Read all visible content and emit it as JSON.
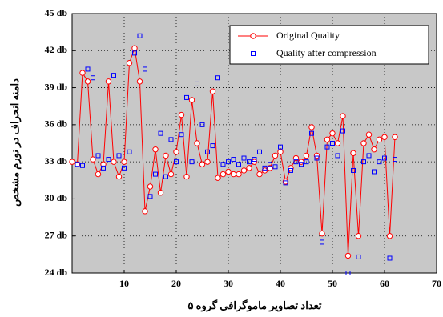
{
  "chart_data": {
    "type": "line",
    "xlabel": "تعداد تصاویر ماموگرافی گروه ۵",
    "ylabel": "دامنه انحراف در نورم مشخص",
    "xlim": [
      0,
      70
    ],
    "xticks": [
      10,
      20,
      30,
      40,
      50,
      60,
      70
    ],
    "ylim": [
      24,
      45
    ],
    "yticks": [
      {
        "value": 24,
        "label": "24 db"
      },
      {
        "value": 27,
        "label": "27 db"
      },
      {
        "value": 30,
        "label": "30 db"
      },
      {
        "value": 33,
        "label": "33 db"
      },
      {
        "value": 36,
        "label": "36 db"
      },
      {
        "value": 39,
        "label": "39 db"
      },
      {
        "value": 42,
        "label": "42 db"
      },
      {
        "value": 45,
        "label": "45 db"
      }
    ],
    "grid": true,
    "legend": "upper right",
    "series": [
      {
        "name": "Original Quality",
        "color": "#ff0000",
        "marker": "circle",
        "x": [
          0,
          1,
          2,
          3,
          4,
          5,
          6,
          7,
          8,
          9,
          10,
          11,
          12,
          13,
          14,
          15,
          16,
          17,
          18,
          19,
          20,
          21,
          22,
          23,
          24,
          25,
          26,
          27,
          28,
          29,
          30,
          31,
          32,
          33,
          34,
          35,
          36,
          37,
          38,
          39,
          40,
          41,
          42,
          43,
          44,
          45,
          46,
          47,
          48,
          49,
          50,
          51,
          52,
          53,
          54,
          55,
          56,
          57,
          58,
          59,
          60,
          61,
          62
        ],
        "values": [
          33,
          32.8,
          40.2,
          39.5,
          33.2,
          32,
          32.8,
          39.5,
          33,
          31.8,
          33,
          41,
          42.2,
          39.5,
          29,
          31,
          34,
          30.5,
          33.5,
          32,
          33.8,
          36.8,
          31.8,
          38,
          34.5,
          32.8,
          33,
          38.7,
          31.7,
          32,
          32.2,
          32,
          32,
          32.3,
          32.5,
          33,
          32,
          32.3,
          32.5,
          33.5,
          33.8,
          31.4,
          32.5,
          33.3,
          33,
          33.5,
          35.8,
          33.5,
          27.2,
          34.8,
          35.3,
          34.5,
          36.7,
          25.4,
          33.7,
          27,
          34.5,
          35.2,
          34,
          34.8,
          35,
          27,
          35
        ]
      },
      {
        "name": "Quality after compression",
        "color": "#0000ff",
        "marker": "square",
        "x": [
          1,
          2,
          3,
          4,
          5,
          6,
          7,
          8,
          9,
          10,
          11,
          12,
          13,
          14,
          15,
          16,
          17,
          18,
          19,
          20,
          21,
          22,
          23,
          24,
          25,
          26,
          27,
          28,
          29,
          30,
          31,
          32,
          33,
          34,
          35,
          36,
          37,
          38,
          39,
          40,
          41,
          42,
          43,
          44,
          45,
          46,
          47,
          48,
          49,
          50,
          51,
          52,
          53,
          54,
          55,
          56,
          57,
          58,
          59,
          60,
          61,
          62
        ],
        "values": [
          32.8,
          32.7,
          40.5,
          39.8,
          33.5,
          32.5,
          33.2,
          40,
          33.5,
          32.5,
          33.8,
          41.8,
          43.2,
          40.5,
          30.2,
          32,
          35.3,
          31.8,
          34.8,
          33,
          35.2,
          38.2,
          33,
          39.3,
          36,
          33.8,
          34.3,
          39.8,
          32.8,
          33,
          33.2,
          32.8,
          33.3,
          33,
          33.2,
          33.8,
          32.5,
          32.8,
          32.6,
          34.2,
          31.3,
          32.3,
          33,
          32.8,
          33,
          35.3,
          33.3,
          26.5,
          34.2,
          34.5,
          33.5,
          35.5,
          24,
          32.3,
          25.3,
          33,
          33.5,
          32.2,
          33,
          33.3,
          25.2,
          33.2
        ]
      }
    ]
  }
}
